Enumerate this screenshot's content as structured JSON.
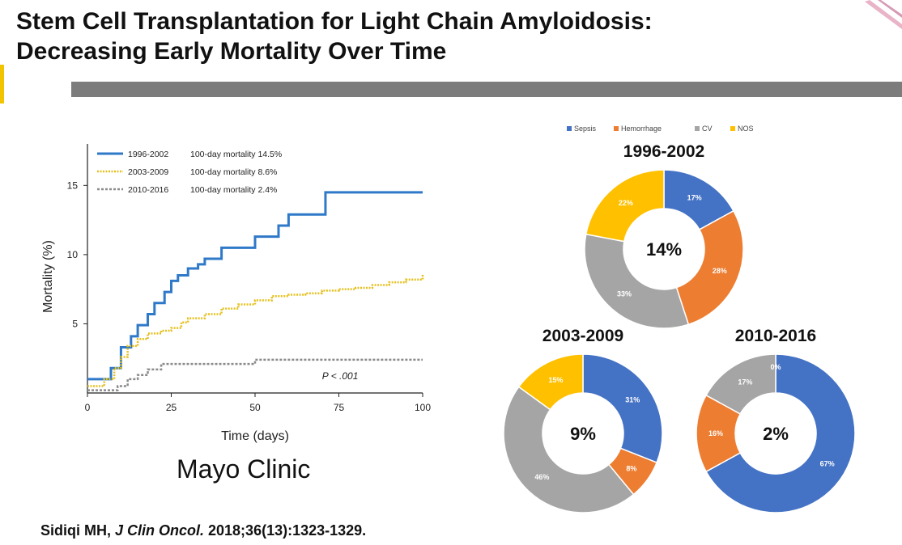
{
  "header": {
    "title_line1": "Stem Cell Transplantation for Light Chain Amyloidosis:",
    "title_line2": "Decreasing Early Mortality Over Time"
  },
  "institution": "Mayo Clinic",
  "citation": {
    "authors": "Sidiqi MH, ",
    "journal": "J Clin Oncol.",
    "details": " 2018;36(13):1323-1329."
  },
  "chart_data": [
    {
      "type": "line",
      "xlabel": "Time (days)",
      "ylabel": "Mortality (%)",
      "xlim": [
        0,
        100
      ],
      "ylim": [
        0,
        18
      ],
      "xticks": [
        0,
        25,
        50,
        75,
        100
      ],
      "yticks": [
        5,
        10,
        15
      ],
      "annotation": "P < .001",
      "legend_position": "top-left",
      "series": [
        {
          "name": "1996-2002",
          "note": "100-day mortality 14.5%",
          "color": "#2f79c9",
          "style": "solid",
          "x": [
            0,
            7,
            10,
            13,
            15,
            18,
            20,
            23,
            25,
            27,
            30,
            33,
            35,
            40,
            45,
            50,
            52,
            57,
            60,
            63,
            71,
            100
          ],
          "y": [
            1.0,
            1.8,
            3.3,
            4.1,
            4.9,
            5.7,
            6.5,
            7.3,
            8.1,
            8.5,
            9.0,
            9.3,
            9.7,
            10.5,
            10.5,
            11.3,
            11.3,
            12.1,
            12.9,
            12.9,
            14.5,
            14.5
          ]
        },
        {
          "name": "2003-2009",
          "note": "100-day mortality 8.6%",
          "color": "#e5c01c",
          "style": "dotted",
          "x": [
            0,
            5,
            8,
            10,
            12,
            15,
            18,
            22,
            25,
            28,
            30,
            35,
            40,
            45,
            50,
            55,
            60,
            65,
            70,
            75,
            80,
            85,
            90,
            95,
            100
          ],
          "y": [
            0.5,
            1.0,
            1.8,
            2.6,
            3.4,
            3.9,
            4.3,
            4.5,
            4.7,
            5.1,
            5.4,
            5.7,
            6.1,
            6.4,
            6.7,
            7.0,
            7.1,
            7.2,
            7.4,
            7.5,
            7.6,
            7.8,
            8.0,
            8.2,
            8.6
          ]
        },
        {
          "name": "2010-2016",
          "note": "100-day mortality 2.4%",
          "color": "#8a8a8a",
          "style": "dashed",
          "x": [
            0,
            9,
            12,
            15,
            18,
            22,
            50,
            100
          ],
          "y": [
            0.2,
            0.5,
            1.0,
            1.3,
            1.7,
            2.1,
            2.4,
            2.4
          ]
        }
      ]
    },
    {
      "type": "pie",
      "title": "1996-2002",
      "center_label": "14%",
      "categories": [
        "Sepsis",
        "Hemorrhage",
        "CV",
        "NOS"
      ],
      "values": [
        17,
        28,
        33,
        22
      ],
      "labels": [
        "17%",
        "28%",
        "33%",
        "22%"
      ],
      "colors": [
        "#4472c4",
        "#ed7d31",
        "#a5a5a5",
        "#ffc000"
      ],
      "legend_position": "top"
    },
    {
      "type": "pie",
      "title": "2003-2009",
      "center_label": "9%",
      "categories": [
        "Sepsis",
        "Hemorrhage",
        "CV",
        "NOS"
      ],
      "values": [
        31,
        8,
        46,
        15
      ],
      "labels": [
        "31%",
        "8%",
        "46%",
        "15%"
      ],
      "colors": [
        "#4472c4",
        "#ed7d31",
        "#a5a5a5",
        "#ffc000"
      ]
    },
    {
      "type": "pie",
      "title": "2010-2016",
      "center_label": "2%",
      "categories": [
        "Sepsis",
        "Hemorrhage",
        "CV",
        "NOS"
      ],
      "values": [
        67,
        16,
        17,
        0
      ],
      "labels": [
        "67%",
        "16%",
        "17%",
        "0%"
      ],
      "colors": [
        "#4472c4",
        "#ed7d31",
        "#a5a5a5",
        "#ffc000"
      ]
    }
  ]
}
